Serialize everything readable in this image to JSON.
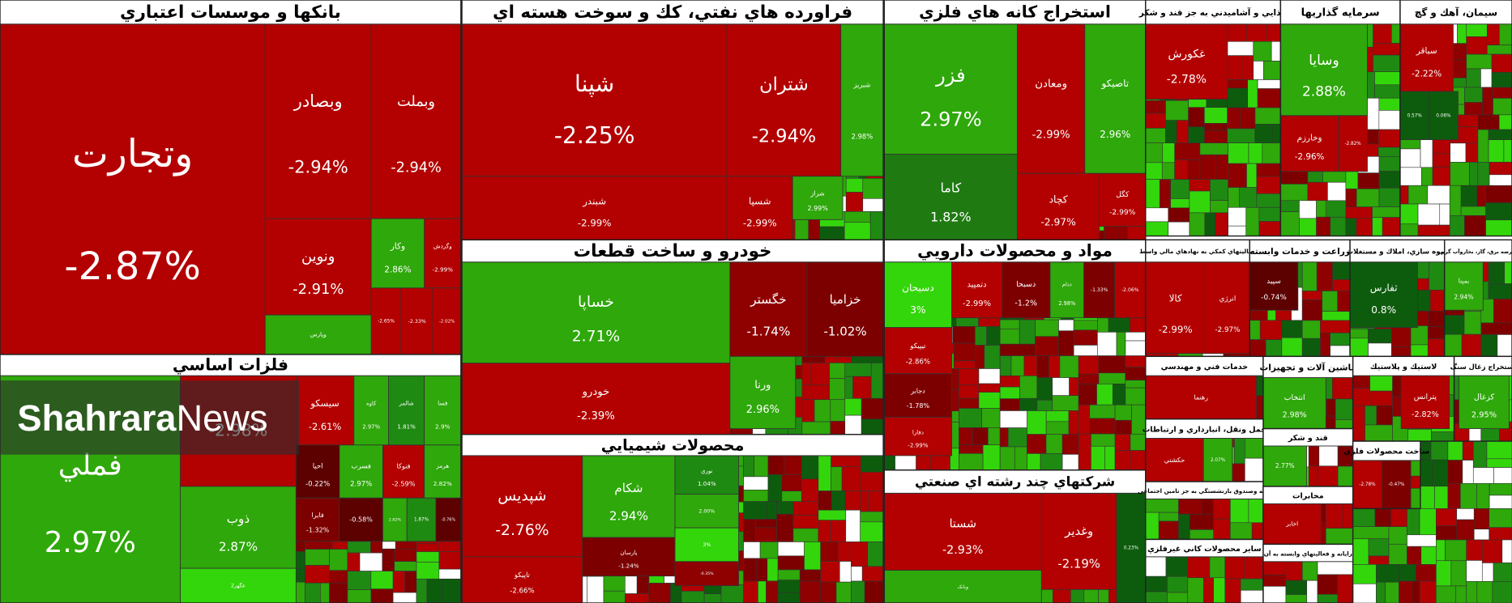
{
  "watermark": {
    "bold": "Shahrara",
    "light": "News"
  },
  "sectors": [
    {
      "title": "بانکها و موسسات اعتباري",
      "tiles": [
        {
          "name": "وتجارت",
          "change": "-2.87%",
          "color": "#b30000"
        },
        {
          "name": "وبصادر",
          "change": "-2.94%",
          "color": "#b30000"
        },
        {
          "name": "وبملت",
          "change": "-2.94%",
          "color": "#b30000"
        },
        {
          "name": "ونوين",
          "change": "-2.91%",
          "color": "#b30000"
        },
        {
          "name": "وکار",
          "change": "2.86%",
          "color": "#2ea80a"
        },
        {
          "name": "وگردش",
          "change": "-2.99%",
          "color": "#b30000"
        },
        {
          "name": "وپارس",
          "color": "#2ea80a"
        },
        {
          "change": "-2.65%",
          "color": "#b30000"
        },
        {
          "change": "-2.33%",
          "color": "#b30000"
        },
        {
          "change": "-2.02%",
          "color": "#b30000"
        }
      ]
    },
    {
      "title": "فلزات اساسي",
      "tiles": [
        {
          "name": "فملي",
          "change": "2.97%",
          "color": "#2ea80a"
        },
        {
          "change": "-2.98%",
          "color": "#b30000"
        },
        {
          "name": "ذوب",
          "change": "2.87%",
          "color": "#2ea80a"
        },
        {
          "name": "عگهر2",
          "color": "#33d60a"
        },
        {
          "name": "سيسکو",
          "change": "-2.61%",
          "color": "#b30000"
        },
        {
          "name": "کاوه",
          "change": "2.97%",
          "color": "#2ea80a"
        },
        {
          "name": "شالمر",
          "change": "1.81%",
          "color": "#1f8a12"
        },
        {
          "name": "فسا",
          "change": "2.9%",
          "color": "#2ea80a"
        },
        {
          "name": "احيا",
          "change": "-0.22%",
          "color": "#5c0000"
        },
        {
          "name": "فسرب",
          "change": "2.97%",
          "color": "#2ea80a"
        },
        {
          "name": "فنوکا",
          "change": "-2.59%",
          "color": "#b30000"
        },
        {
          "name": "هرمز",
          "change": "2.82%",
          "color": "#2ea80a"
        },
        {
          "name": "فايرا",
          "change": "-1.32%",
          "color": "#7d0000"
        },
        {
          "change": "-0.58%",
          "color": "#5c0000"
        },
        {
          "change": "2.82%",
          "color": "#2ea80a"
        },
        {
          "change": "1.87%",
          "color": "#1f8a12"
        },
        {
          "change": "-0.76%",
          "color": "#5c0000"
        }
      ]
    },
    {
      "title": "فراورده هاي نفتي، كك و سوخت هسته اي",
      "tiles": [
        {
          "name": "شپنا",
          "change": "-2.25%",
          "color": "#b30000"
        },
        {
          "name": "شتران",
          "change": "-2.94%",
          "color": "#b30000"
        },
        {
          "name": "شبريز",
          "change": "2.98%",
          "color": "#2ea80a"
        },
        {
          "name": "شبندر",
          "change": "-2.99%",
          "color": "#b30000"
        },
        {
          "name": "شسپا",
          "change": "-2.99%",
          "color": "#b30000"
        },
        {
          "name": "شراز",
          "change": "2.99%",
          "color": "#2ea80a"
        }
      ]
    },
    {
      "title": "خودرو و ساخت قطعات",
      "tiles": [
        {
          "name": "خساپا",
          "change": "2.71%",
          "color": "#2ea80a"
        },
        {
          "name": "خگستر",
          "change": "-1.74%",
          "color": "#8f0000"
        },
        {
          "name": "خزاميا",
          "change": "-1.02%",
          "color": "#7d0000"
        },
        {
          "name": "خودرو",
          "change": "-2.39%",
          "color": "#b30000"
        },
        {
          "name": "ورنا",
          "change": "2.96%",
          "color": "#2ea80a"
        }
      ]
    },
    {
      "title": "محصولات شيميايي",
      "tiles": [
        {
          "name": "شپديس",
          "change": "-2.76%",
          "color": "#b30000"
        },
        {
          "name": "شکام",
          "change": "2.94%",
          "color": "#2ea80a"
        },
        {
          "name": "پارسان",
          "change": "-1.24%",
          "color": "#7d0000"
        },
        {
          "name": "تاپيکو",
          "change": "-2.66%",
          "color": "#b30000"
        },
        {
          "name": "نوري",
          "change": "1.04%",
          "color": "#1f8a12"
        },
        {
          "change": "2.00%",
          "color": "#2ea80a"
        },
        {
          "change": "3%",
          "color": "#33d60a"
        },
        {
          "change": "-0.35%",
          "color": "#8f0000"
        }
      ]
    },
    {
      "title": "استخراج كانه هاي فلزي",
      "tiles": [
        {
          "name": "فزر",
          "change": "2.97%",
          "color": "#2ea80a"
        },
        {
          "name": "کاما",
          "change": "1.82%",
          "color": "#1f7a12"
        },
        {
          "name": "ومعادن",
          "change": "-2.99%",
          "color": "#b30000"
        },
        {
          "name": "تاصيكو",
          "change": "2.96%",
          "color": "#2ea80a"
        },
        {
          "name": "کچاد",
          "change": "-2.97%",
          "color": "#b30000"
        },
        {
          "name": "کگل",
          "change": "-2.99%",
          "color": "#b30000"
        }
      ]
    },
    {
      "title": "مواد و محصولات دارويي",
      "tiles": [
        {
          "name": "دسبحان",
          "change": "3%",
          "color": "#33d60a"
        },
        {
          "name": "دتمپيد",
          "change": "-2.99%",
          "color": "#b30000"
        },
        {
          "name": "دسبحا",
          "change": "-1.2%",
          "color": "#7d0000"
        },
        {
          "name": "ددام",
          "change": "2.98%",
          "color": "#2ea80a"
        },
        {
          "change": "-1.33%",
          "color": "#7d0000"
        },
        {
          "change": "-2.06%",
          "color": "#b30000"
        },
        {
          "name": "تيپيکو",
          "change": "-2.86%",
          "color": "#b30000"
        },
        {
          "name": "دجابر",
          "change": "-1.78%",
          "color": "#7d0000"
        },
        {
          "name": "دفارا",
          "change": "-2.99%",
          "color": "#b30000"
        }
      ]
    },
    {
      "title": "شرکتهاي چند رشته اي صنعتي",
      "tiles": [
        {
          "name": "شستا",
          "change": "-2.93%",
          "color": "#b30000"
        },
        {
          "name": "وغدير",
          "change": "-2.19%",
          "color": "#b30000"
        },
        {
          "change": "0.23%",
          "color": "#0d5c0d"
        },
        {
          "name": "وبانک",
          "color": "#2ea80a"
        }
      ]
    },
    {
      "title": "غذايي و آشاميدني به جز قند و شكر",
      "tiles": [
        {
          "name": "غکورش",
          "change": "-2.78%",
          "color": "#b30000"
        }
      ]
    },
    {
      "title": "سرمايه گذاريها",
      "tiles": [
        {
          "name": "وسايا",
          "change": "2.88%",
          "color": "#2ea80a"
        },
        {
          "name": "وخارزم",
          "change": "-2.96%",
          "color": "#b30000"
        },
        {
          "change": "-2.82%",
          "color": "#b30000"
        }
      ]
    },
    {
      "title": "سيمان، آهك و گچ",
      "tiles": [
        {
          "name": "سباقر",
          "change": "-2.22%",
          "color": "#b30000"
        },
        {
          "change": "0.57%",
          "color": "#0d5c0d"
        },
        {
          "change": "0.06%",
          "color": "#0d5c0d"
        }
      ]
    },
    {
      "title": "فعاليتهاي كمكي به نهادهاي مالي واسط",
      "tiles": [
        {
          "name": "کالا",
          "change": "-2.99%",
          "color": "#b30000"
        },
        {
          "name": "انرژي",
          "change": "-2.97%",
          "color": "#b30000"
        }
      ]
    },
    {
      "title": "زراعت و خدمات وابسته",
      "tiles": [
        {
          "name": "سپيد",
          "change": "-0.74%",
          "color": "#5c0000"
        }
      ]
    },
    {
      "title": "انبوه سازي، املاك و مستغلات",
      "tiles": [
        {
          "name": "ثفارس",
          "change": "0.8%",
          "color": "#0d5c0d"
        }
      ]
    },
    {
      "title": "عرضه برق، گاز، بخاروآب گرم",
      "tiles": [
        {
          "name": "بمپنا",
          "change": "2.94%",
          "color": "#2ea80a"
        }
      ]
    },
    {
      "title": "خدمات فني و مهندسي",
      "tiles": [
        {
          "name": "رهنما",
          "color": "#b30000"
        }
      ]
    },
    {
      "title": "ماشين آلات و تجهيزات",
      "tiles": [
        {
          "name": "انتخاب",
          "change": "2.98%",
          "color": "#2ea80a"
        }
      ]
    },
    {
      "title": "لاستيك و پلاستيك",
      "tiles": [
        {
          "name": "پترانس",
          "change": "-2.82%",
          "color": "#b30000"
        }
      ]
    },
    {
      "title": "استخراج زغال سنگ",
      "tiles": [
        {
          "name": "کزغال",
          "change": "2.95%",
          "color": "#2ea80a"
        }
      ]
    },
    {
      "title": "حمل ونقل، انبارداري و ارتباطات",
      "tiles": [
        {
          "name": "حکشتي",
          "color": "#b30000"
        },
        {
          "change": "2.07%",
          "color": "#2ea80a"
        }
      ]
    },
    {
      "title": "قند و شکر",
      "tiles": [
        {
          "change": "2.77%",
          "color": "#2ea80a"
        }
      ]
    },
    {
      "title": "ساخت محصولات فلزي",
      "tiles": [
        {
          "change": "-2.78%",
          "color": "#b30000"
        },
        {
          "change": "-0.47%",
          "color": "#7d0000"
        }
      ]
    },
    {
      "title": "بيمه وصندوق بازنشستگي به جز تامين اجتماعي",
      "tiles": []
    },
    {
      "title": "مخابرات",
      "tiles": [
        {
          "name": "اخابر",
          "color": "#b30000"
        }
      ]
    },
    {
      "title": "ساير محصولات كاني غيرفلزي",
      "tiles": []
    },
    {
      "title": "رايانه و فعاليتهاي وابسته به آن",
      "tiles": []
    }
  ]
}
